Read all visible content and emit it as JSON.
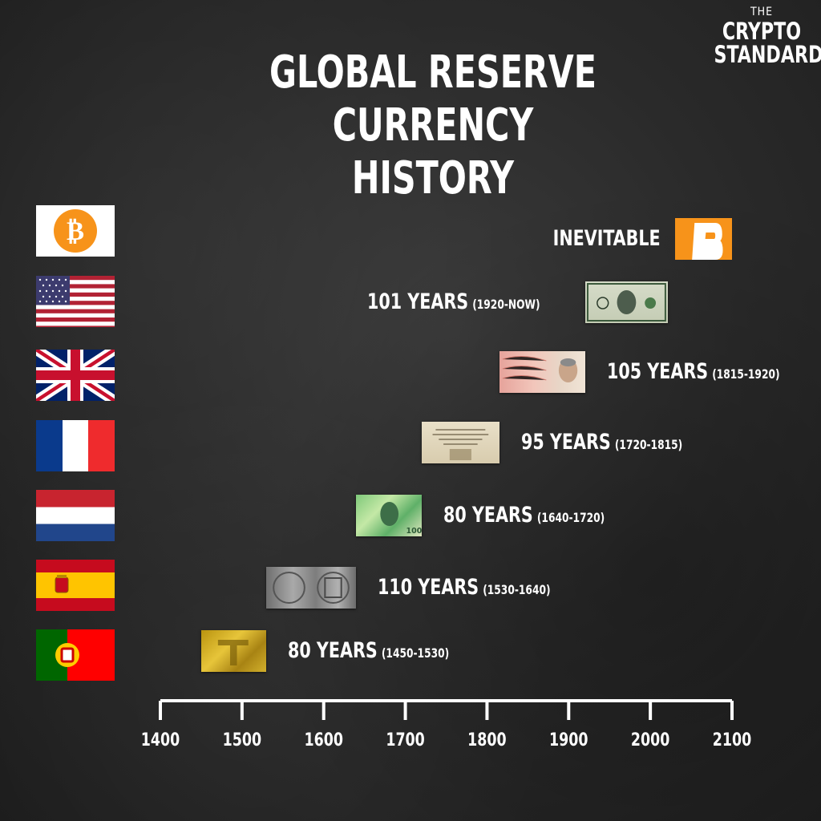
{
  "brand": {
    "line1": "THE",
    "line2": "CRYPTO",
    "line3": "STANDARD"
  },
  "title": {
    "line1": "GLOBAL RESERVE CURRENCY",
    "line2": "HISTORY"
  },
  "colors": {
    "bitcoin": "#F7931A",
    "background": "#262626",
    "axis": "#FFFFFF"
  },
  "chart_data": {
    "type": "bar",
    "orientation": "horizontal",
    "title": "GLOBAL RESERVE CURRENCY HISTORY",
    "xlim": [
      1400,
      2100
    ],
    "x_ticks": [
      "1400",
      "1500",
      "1600",
      "1700",
      "1800",
      "1900",
      "2000",
      "2100"
    ],
    "series": [
      {
        "flag": "portugal-flag",
        "start": 1450,
        "end": 1530,
        "years": "80 YEARS",
        "range": "(1450-1530)"
      },
      {
        "flag": "spain-flag",
        "start": 1530,
        "end": 1640,
        "years": "110 YEARS",
        "range": "(1530-1640)"
      },
      {
        "flag": "netherlands-flag",
        "start": 1640,
        "end": 1720,
        "years": "80 YEARS",
        "range": "(1640-1720)"
      },
      {
        "flag": "france-flag",
        "start": 1720,
        "end": 1815,
        "years": "95 YEARS",
        "range": "(1720-1815)"
      },
      {
        "flag": "united-kingdom-flag",
        "start": 1815,
        "end": 1920,
        "years": "105 YEARS",
        "range": "(1815-1920)"
      },
      {
        "flag": "united-states-flag",
        "start": 1920,
        "end": 2021,
        "years": "101 YEARS",
        "range": "(1920-NOW)"
      },
      {
        "flag": "bitcoin-flag",
        "start": 2030,
        "end": 2100,
        "years": "INEVITABLE",
        "range": ""
      }
    ]
  }
}
